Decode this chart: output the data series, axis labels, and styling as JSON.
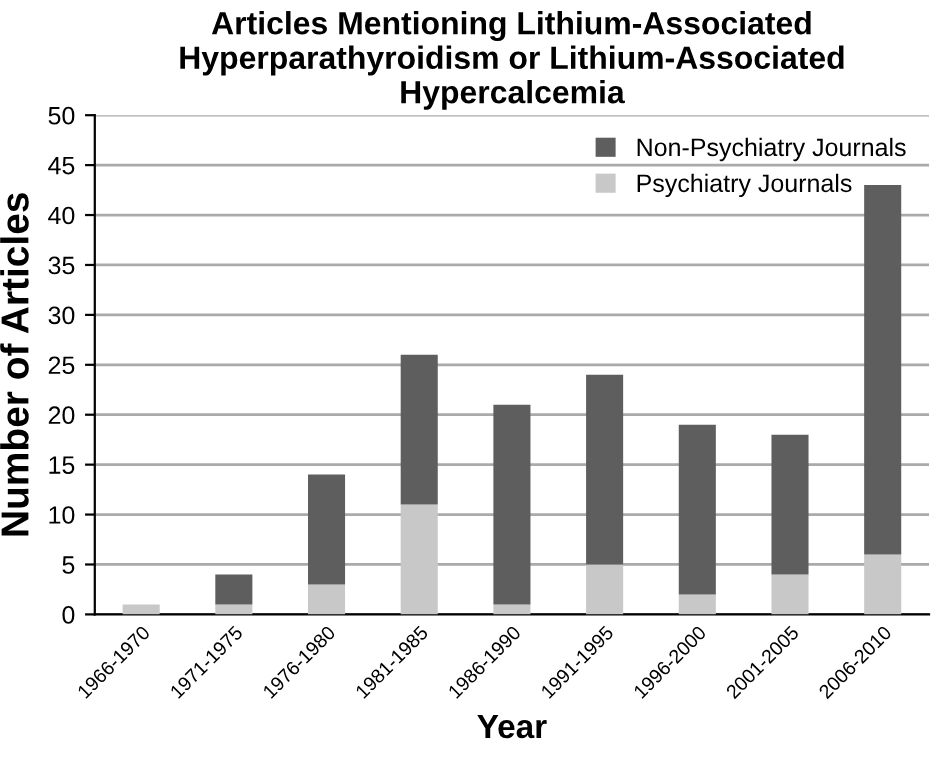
{
  "chart_data": {
    "type": "bar",
    "stacked": true,
    "title": "Articles Mentioning Lithium-Associated Hyperparathyroidism or Lithium-Associated Hypercalcemia",
    "xlabel": "Year",
    "ylabel": "Number of Articles",
    "categories": [
      "1966-1970",
      "1971-1975",
      "1976-1980",
      "1981-1985",
      "1986-1990",
      "1991-1995",
      "1996-2000",
      "2001-2005",
      "2006-2010"
    ],
    "series": [
      {
        "name": "Psychiatry Journals",
        "color": "#c8c8c8",
        "values": [
          1,
          1,
          3,
          11,
          1,
          5,
          2,
          4,
          6
        ]
      },
      {
        "name": "Non-Psychiatry Journals",
        "color": "#5e5e5e",
        "values": [
          0,
          3,
          11,
          15,
          20,
          19,
          17,
          14,
          37
        ]
      }
    ],
    "ylim": [
      0,
      50
    ],
    "yticks": [
      0,
      5,
      10,
      15,
      20,
      25,
      30,
      35,
      40,
      45,
      50
    ],
    "grid": "y",
    "legend": "top right"
  }
}
